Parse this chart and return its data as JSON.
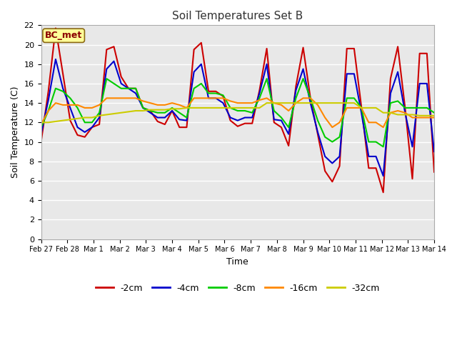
{
  "title": "Soil Temperatures Set B",
  "xlabel": "Time",
  "ylabel": "Soil Temperature (C)",
  "annotation": "BC_met",
  "legend_labels": [
    "-2cm",
    "-4cm",
    "-8cm",
    "-16cm",
    "-32cm"
  ],
  "legend_colors": [
    "#cc0000",
    "#0000cc",
    "#00cc00",
    "#ff8800",
    "#cccc00"
  ],
  "fig_bg_color": "#ffffff",
  "plot_bg_color": "#e8e8e8",
  "ylim": [
    0,
    22
  ],
  "yticks": [
    0,
    2,
    4,
    6,
    8,
    10,
    12,
    14,
    16,
    18,
    20,
    22
  ],
  "x_labels": [
    "Feb 27",
    "Feb 28",
    "Mar 1",
    "Mar 2",
    "Mar 3",
    "Mar 4",
    "Mar 5",
    "Mar 6",
    "Mar 7",
    "Mar 8",
    "Mar 9",
    "Mar 10",
    "Mar 11",
    "Mar 12",
    "Mar 13",
    "Mar 14"
  ],
  "t_2cm": [
    10.0,
    15.2,
    21.7,
    17.0,
    12.2,
    10.7,
    10.5,
    11.5,
    11.8,
    19.5,
    19.8,
    16.7,
    15.5,
    15.5,
    13.5,
    13.2,
    12.1,
    11.8,
    13.2,
    11.5,
    11.5,
    19.5,
    20.2,
    15.2,
    15.2,
    14.7,
    12.2,
    11.6,
    11.9,
    11.9,
    15.3,
    19.6,
    12.0,
    11.5,
    9.6,
    15.7,
    19.7,
    14.5,
    10.8,
    7.0,
    5.9,
    7.5,
    19.6,
    19.6,
    13.6,
    7.3,
    7.3,
    4.8,
    16.5,
    19.8,
    13.5,
    6.2,
    19.1,
    19.1,
    6.9
  ],
  "t_4cm": [
    10.8,
    14.3,
    18.5,
    15.5,
    13.5,
    11.5,
    11.0,
    11.5,
    12.5,
    17.5,
    18.3,
    16.0,
    15.5,
    15.0,
    13.5,
    13.0,
    12.5,
    12.5,
    13.2,
    12.3,
    12.2,
    17.2,
    18.0,
    14.5,
    14.5,
    14.0,
    12.5,
    12.2,
    12.5,
    12.5,
    15.0,
    18.0,
    12.3,
    12.2,
    10.8,
    15.3,
    17.5,
    14.0,
    11.0,
    8.5,
    7.8,
    8.5,
    17.0,
    17.0,
    13.0,
    8.5,
    8.5,
    6.5,
    15.0,
    17.2,
    13.0,
    9.5,
    16.0,
    16.0,
    9.0
  ],
  "t_8cm": [
    11.5,
    13.2,
    15.5,
    15.2,
    14.5,
    13.5,
    12.0,
    12.0,
    13.0,
    16.5,
    16.0,
    15.5,
    15.5,
    15.5,
    13.5,
    13.2,
    13.0,
    13.0,
    13.5,
    13.0,
    12.5,
    15.5,
    16.0,
    15.0,
    15.0,
    14.8,
    13.5,
    13.2,
    13.2,
    13.0,
    14.5,
    16.5,
    13.2,
    12.5,
    11.5,
    14.5,
    16.5,
    14.5,
    12.2,
    10.5,
    10.0,
    10.5,
    14.5,
    14.5,
    13.5,
    10.0,
    10.0,
    9.5,
    14.0,
    14.2,
    13.5,
    13.5,
    13.5,
    13.5,
    13.0
  ],
  "t_16cm": [
    11.8,
    13.2,
    14.0,
    13.8,
    13.8,
    13.8,
    13.5,
    13.5,
    13.8,
    14.5,
    14.5,
    14.5,
    14.5,
    14.5,
    14.2,
    14.0,
    13.8,
    13.8,
    14.0,
    13.8,
    13.5,
    14.5,
    14.5,
    14.5,
    14.5,
    14.5,
    14.2,
    14.0,
    14.0,
    14.0,
    14.3,
    14.5,
    14.0,
    13.8,
    13.2,
    14.0,
    14.5,
    14.5,
    13.8,
    12.5,
    11.5,
    12.0,
    13.5,
    13.5,
    13.5,
    12.0,
    12.0,
    11.5,
    13.0,
    13.2,
    13.0,
    12.5,
    12.5,
    12.5,
    12.5
  ],
  "t_32cm": [
    12.0,
    12.0,
    12.1,
    12.2,
    12.3,
    12.4,
    12.5,
    12.5,
    12.7,
    12.8,
    12.9,
    13.0,
    13.1,
    13.2,
    13.2,
    13.3,
    13.3,
    13.3,
    13.4,
    13.4,
    13.5,
    13.5,
    13.5,
    13.5,
    13.5,
    13.5,
    13.5,
    13.5,
    13.5,
    13.5,
    13.5,
    14.0,
    14.0,
    14.0,
    14.0,
    14.0,
    14.0,
    14.0,
    14.0,
    14.0,
    14.0,
    14.0,
    14.0,
    14.0,
    13.5,
    13.5,
    13.5,
    13.0,
    13.0,
    12.8,
    12.8,
    12.8,
    12.7,
    12.7,
    12.7
  ]
}
